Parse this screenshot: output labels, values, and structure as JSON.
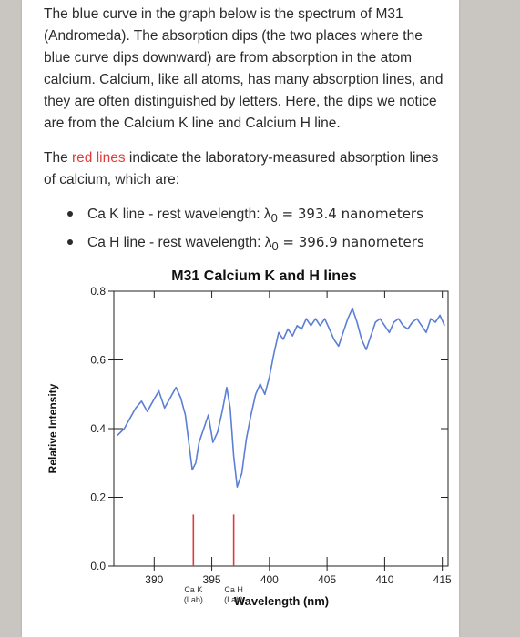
{
  "text": {
    "intro": "The blue curve in the graph below is the spectrum of M31 (Andromeda). The absorption dips (the two places where the blue curve dips downward) are from absorption in the atom calcium. Calcium, like all atoms, has many absorption lines, and they are often distinguished by letters. Here, the dips we notice are from the Calcium K line and Calcium H line.",
    "red_lines_prefix": "The ",
    "red_lines_word": "red lines",
    "red_lines_suffix": " indicate the laboratory-measured absorption lines of calcium, which are:",
    "bullets": [
      {
        "label": "Ca K line - rest wavelength: λ",
        "sub": "0",
        "value": " = 393.4 nanometers"
      },
      {
        "label": "Ca H line - rest wavelength: λ",
        "sub": "0",
        "value": " = 396.9 nanometers"
      }
    ]
  },
  "colors": {
    "spectrum": "#5b7fd6",
    "lab_lines": "#e03b3b",
    "red_word": "#e03b3b"
  },
  "chart_data": {
    "type": "line",
    "title": "M31 Calcium K and  H lines",
    "xlabel": "Wavelength (nm)",
    "ylabel": "Relative Intensity",
    "xlim": [
      386.5,
      415.5
    ],
    "ylim": [
      0.0,
      0.8
    ],
    "xticks": [
      390,
      395,
      400,
      405,
      410,
      415
    ],
    "yticks": [
      {
        "value": 0.0,
        "label": "0.0"
      },
      {
        "value": 0.2,
        "label": "0.2"
      },
      {
        "value": 0.4,
        "label": "0.4"
      },
      {
        "value": 0.6,
        "label": "0.6"
      },
      {
        "value": 0.8,
        "label": "0.8"
      }
    ],
    "grid": false,
    "lab_lines": [
      {
        "x": 393.4,
        "label1": "Ca K",
        "label2": "(Lab)"
      },
      {
        "x": 396.9,
        "label1": "Ca H",
        "label2": "(Lab)"
      }
    ],
    "lab_line_top": 0.15,
    "series": [
      {
        "x": [
          386.8,
          387.4,
          387.9,
          388.4,
          388.9,
          389.4,
          389.9,
          390.4,
          390.9,
          391.4,
          391.9,
          392.3,
          392.7,
          393.0,
          393.3,
          393.6,
          393.9,
          394.3,
          394.7,
          395.1,
          395.5,
          395.9,
          396.3,
          396.6,
          396.9,
          397.2,
          397.6,
          398.0,
          398.4,
          398.8,
          399.2,
          399.6,
          400.0,
          400.4,
          400.8,
          401.2,
          401.6,
          402.0,
          402.4,
          402.8,
          403.2,
          403.6,
          404.0,
          404.4,
          404.8,
          405.2,
          405.6,
          406.0,
          406.4,
          406.8,
          407.2,
          407.6,
          408.0,
          408.4,
          408.8,
          409.2,
          409.6,
          410.0,
          410.4,
          410.8,
          411.2,
          411.6,
          412.0,
          412.4,
          412.8,
          413.2,
          413.6,
          414.0,
          414.4,
          414.8,
          415.2
        ],
        "y": [
          0.38,
          0.4,
          0.43,
          0.46,
          0.48,
          0.45,
          0.48,
          0.51,
          0.46,
          0.49,
          0.52,
          0.49,
          0.44,
          0.36,
          0.28,
          0.3,
          0.36,
          0.4,
          0.44,
          0.36,
          0.39,
          0.45,
          0.52,
          0.46,
          0.32,
          0.23,
          0.27,
          0.37,
          0.44,
          0.5,
          0.53,
          0.5,
          0.55,
          0.62,
          0.68,
          0.66,
          0.69,
          0.67,
          0.7,
          0.69,
          0.72,
          0.7,
          0.72,
          0.7,
          0.72,
          0.69,
          0.66,
          0.64,
          0.68,
          0.72,
          0.75,
          0.71,
          0.66,
          0.63,
          0.67,
          0.71,
          0.72,
          0.7,
          0.68,
          0.71,
          0.72,
          0.7,
          0.69,
          0.71,
          0.72,
          0.7,
          0.68,
          0.72,
          0.71,
          0.73,
          0.7
        ]
      }
    ]
  }
}
